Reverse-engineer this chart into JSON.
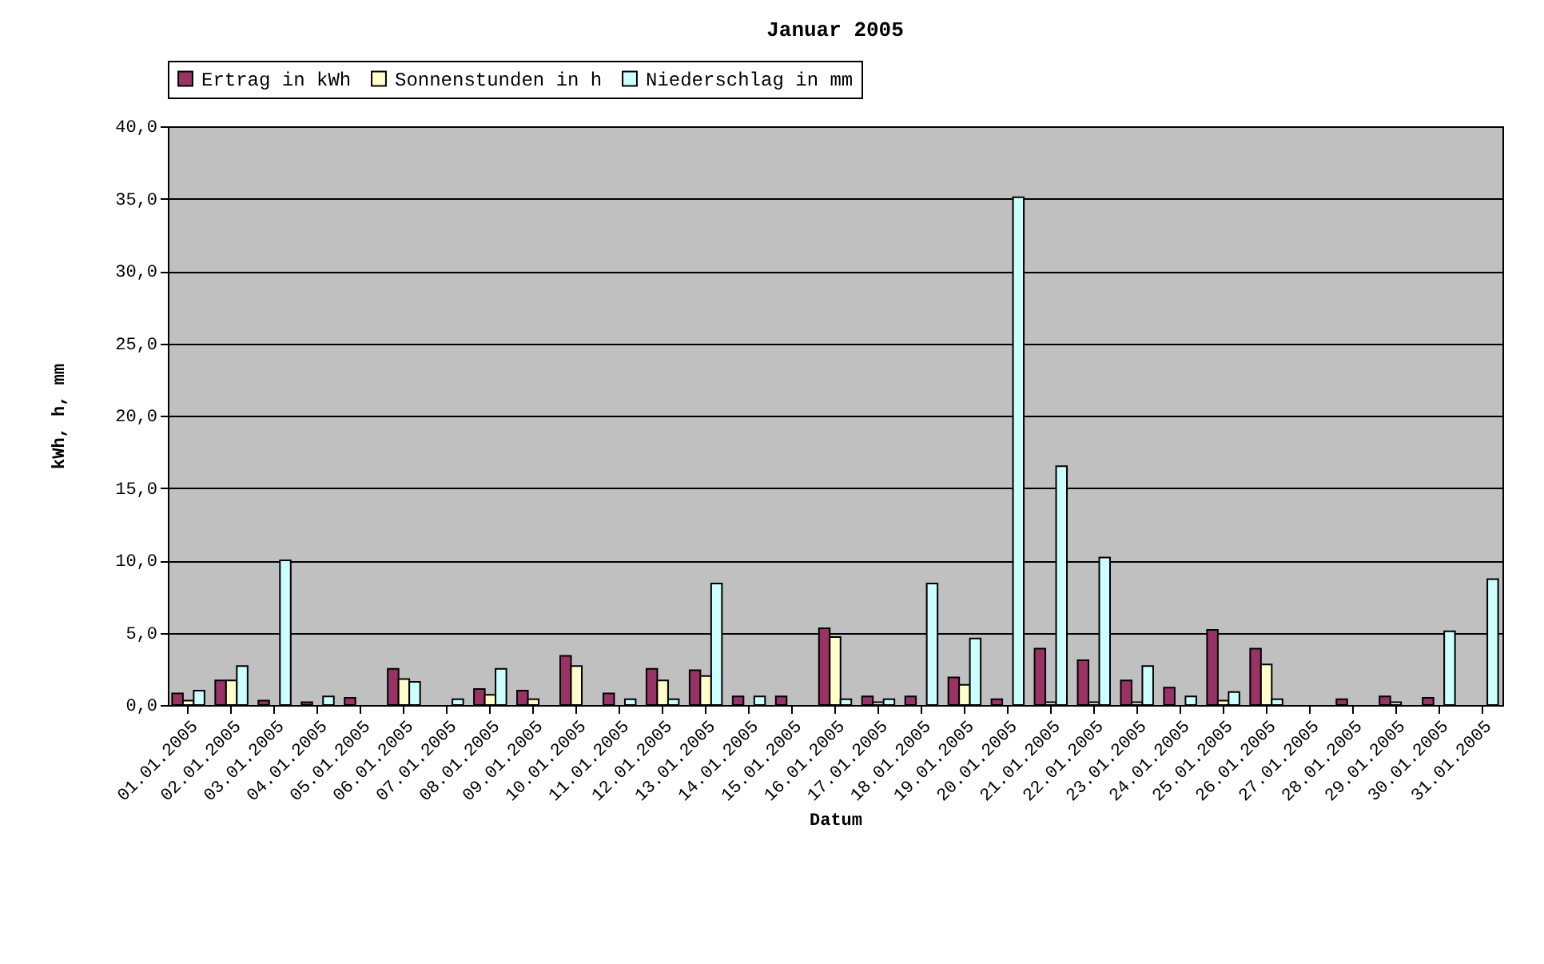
{
  "chart_data": {
    "type": "bar",
    "title": "Januar 2005",
    "xlabel": "Datum",
    "ylabel": "kWh, h, mm",
    "categories": [
      "01.01.2005",
      "02.01.2005",
      "03.01.2005",
      "04.01.2005",
      "05.01.2005",
      "06.01.2005",
      "07.01.2005",
      "08.01.2005",
      "09.01.2005",
      "10.01.2005",
      "11.01.2005",
      "12.01.2005",
      "13.01.2005",
      "14.01.2005",
      "15.01.2005",
      "16.01.2005",
      "17.01.2005",
      "18.01.2005",
      "19.01.2005",
      "20.01.2005",
      "21.01.2005",
      "22.01.2005",
      "23.01.2005",
      "24.01.2005",
      "25.01.2005",
      "26.01.2005",
      "27.01.2005",
      "28.01.2005",
      "29.01.2005",
      "30.01.2005",
      "31.01.2005"
    ],
    "series": [
      {
        "name": "Ertrag in kWh",
        "color": "#993366",
        "values": [
          0.8,
          1.7,
          0.3,
          0.2,
          0.5,
          2.5,
          0,
          1.1,
          1.0,
          3.4,
          0.8,
          2.5,
          2.4,
          0.6,
          0.6,
          5.3,
          0.6,
          0.6,
          1.9,
          0.4,
          3.9,
          3.1,
          1.7,
          1.2,
          5.2,
          3.9,
          0,
          0.4,
          0.6,
          0.5,
          0
        ]
      },
      {
        "name": "Sonnenstunden in h",
        "color": "#ffffcc",
        "values": [
          0.3,
          1.7,
          0,
          0,
          0,
          1.8,
          0,
          0.7,
          0.4,
          2.7,
          0,
          1.7,
          2.0,
          0,
          0,
          4.7,
          0.2,
          0,
          1.4,
          0,
          0.2,
          0.2,
          0.2,
          0,
          0.3,
          2.8,
          0,
          0,
          0.2,
          0,
          0
        ]
      },
      {
        "name": "Niederschlag in mm",
        "color": "#ccffff",
        "values": [
          1.0,
          2.7,
          10.0,
          0.6,
          0,
          1.6,
          0.4,
          2.5,
          0,
          0,
          0.4,
          0.4,
          8.4,
          0.6,
          0,
          0.4,
          0.4,
          8.4,
          4.6,
          35.1,
          16.5,
          10.2,
          2.7,
          0.6,
          0.9,
          0.4,
          0,
          0,
          0,
          5.1,
          8.7
        ]
      }
    ],
    "ylim": [
      0,
      40
    ],
    "yticks": [
      {
        "value": 0,
        "label": "0,0"
      },
      {
        "value": 5,
        "label": "5,0"
      },
      {
        "value": 10,
        "label": "10,0"
      },
      {
        "value": 15,
        "label": "15,0"
      },
      {
        "value": 20,
        "label": "20,0"
      },
      {
        "value": 25,
        "label": "25,0"
      },
      {
        "value": 30,
        "label": "30,0"
      },
      {
        "value": 35,
        "label": "35,0"
      },
      {
        "value": 40,
        "label": "40,0"
      }
    ],
    "grid": "y",
    "legend": "top"
  }
}
